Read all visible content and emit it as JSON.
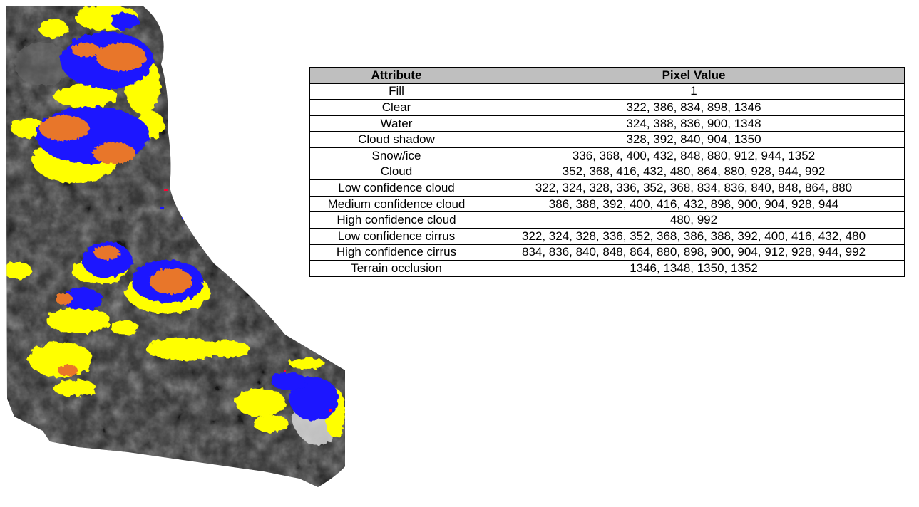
{
  "map": {
    "colors": {
      "background_terrain": "#2a2a2a",
      "terrain_light": "#7a7a7a",
      "snow_area": "#d8d8d8",
      "cloud_yellow": "#ffff00",
      "cloud_blue": "#1a14ff",
      "cloud_orange": "#e8762c",
      "noise_red": "#ff0033"
    }
  },
  "table": {
    "headers": [
      "Attribute",
      "Pixel Value"
    ],
    "rows": [
      {
        "attribute": "Fill",
        "values": "1"
      },
      {
        "attribute": "Clear",
        "values": "322, 386, 834, 898, 1346"
      },
      {
        "attribute": "Water",
        "values": "324, 388, 836, 900, 1348"
      },
      {
        "attribute": "Cloud shadow",
        "values": "328, 392, 840, 904, 1350"
      },
      {
        "attribute": "Snow/ice",
        "values": "336, 368, 400, 432, 848, 880, 912, 944, 1352"
      },
      {
        "attribute": "Cloud",
        "values": "352, 368, 416, 432, 480, 864, 880, 928, 944, 992"
      },
      {
        "attribute": "Low confidence cloud",
        "values": "322, 324, 328, 336, 352, 368, 834, 836, 840, 848, 864, 880"
      },
      {
        "attribute": "Medium confidence cloud",
        "values": "386, 388, 392, 400, 416, 432, 898, 900, 904, 928, 944"
      },
      {
        "attribute": "High confidence cloud",
        "values": "480, 992"
      },
      {
        "attribute": "Low confidence cirrus",
        "values": "322, 324, 328, 336, 352, 368, 386, 388, 392, 400, 416, 432, 480"
      },
      {
        "attribute": "High confidence cirrus",
        "values": "834, 836, 840, 848, 864, 880, 898, 900, 904, 912, 928, 944, 992"
      },
      {
        "attribute": "Terrain occlusion",
        "values": "1346, 1348, 1350, 1352"
      }
    ]
  }
}
